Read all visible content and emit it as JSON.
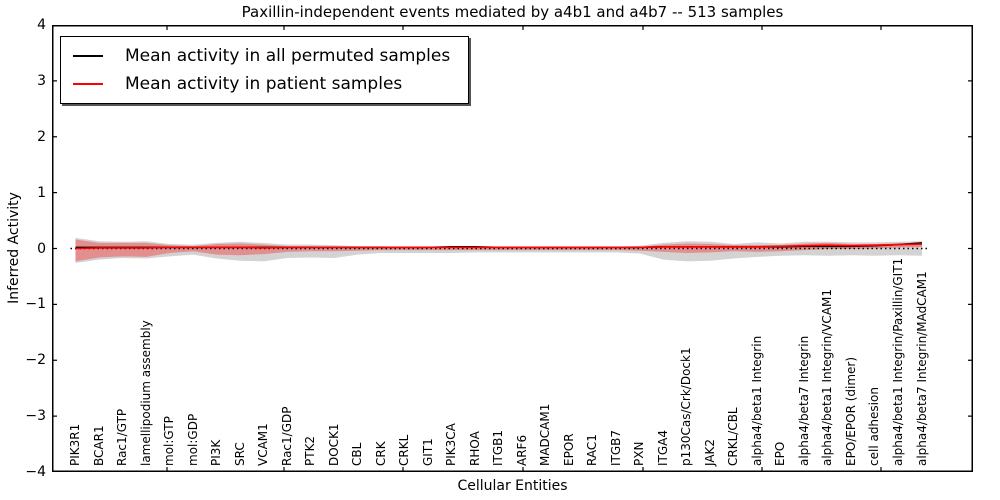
{
  "title": "Paxillin-independent events mediated by a4b1 and a4b7 -- 513 samples",
  "axes": {
    "x_label": "Cellular Entities",
    "y_label": "Inferred Activity"
  },
  "legend": {
    "items": [
      {
        "label": "Mean activity in all permuted samples",
        "color": "#000000"
      },
      {
        "label": "Mean activity in patient samples",
        "color": "#ff0000"
      }
    ]
  },
  "chart_data": {
    "type": "line",
    "title": "Paxillin-independent events mediated by a4b1 and a4b7 -- 513 samples",
    "xlabel": "Cellular Entities",
    "ylabel": "Inferred Activity",
    "ylim": [
      -4,
      4
    ],
    "yticks": [
      -4,
      -3,
      -2,
      -1,
      0,
      1,
      2,
      3,
      4
    ],
    "grid": false,
    "legend_position": "upper left",
    "sample_count": 513,
    "categories": [
      "PIK3R1",
      "BCAR1",
      "Rac1/GTP",
      "lamellipodium assembly",
      "mol:GTP",
      "mol:GDP",
      "PI3K",
      "SRC",
      "VCAM1",
      "Rac1/GDP",
      "PTK2",
      "DOCK1",
      "CBL",
      "CRK",
      "CRKL",
      "GIT1",
      "PIK3CA",
      "RHOA",
      "ITGB1",
      "ARF6",
      "MADCAM1",
      "EPOR",
      "RAC1",
      "ITGB7",
      "PXN",
      "ITGA4",
      "p130Cas/Crk/Dock1",
      "JAK2",
      "CRKL/CBL",
      "alpha4/beta1 Integrin",
      "EPO",
      "alpha4/beta7 Integrin",
      "alpha4/beta1 Integrin/VCAM1",
      "EPO/EPOR (dimer)",
      "cell adhesion",
      "alpha4/beta1 Integrin/Paxillin/GIT1",
      "alpha4/beta7 Integrin/MAdCAM1"
    ],
    "zero_line": {
      "value": 0,
      "linestyle": "dotted",
      "color": "#000000"
    },
    "series": [
      {
        "name": "Mean activity in all permuted samples",
        "color": "#000000",
        "linestyle": "solid",
        "values": [
          0.02,
          0.02,
          0.02,
          0.02,
          0.02,
          0.02,
          0.02,
          0.02,
          0.02,
          0.02,
          0.02,
          0.02,
          0.02,
          0.02,
          0.02,
          0.02,
          0.03,
          0.03,
          0.02,
          0.02,
          0.02,
          0.02,
          0.02,
          0.02,
          0.02,
          0.03,
          0.03,
          0.03,
          0.03,
          0.03,
          0.03,
          0.04,
          0.04,
          0.04,
          0.05,
          0.07,
          0.1
        ]
      },
      {
        "name": "Mean activity in patient samples",
        "color": "#ff0000",
        "linestyle": "solid",
        "values": [
          0.0,
          0.01,
          0.01,
          0.01,
          0.02,
          0.02,
          0.02,
          0.02,
          0.01,
          0.02,
          0.02,
          0.02,
          0.02,
          0.02,
          0.02,
          0.02,
          0.02,
          0.02,
          0.02,
          0.02,
          0.02,
          0.02,
          0.02,
          0.02,
          0.02,
          0.03,
          0.03,
          0.03,
          0.03,
          0.03,
          0.04,
          0.05,
          0.06,
          0.05,
          0.06,
          0.07,
          0.08
        ]
      }
    ],
    "bands": [
      {
        "name": "permuted samples activity range",
        "color": "rgba(128,128,128,0.35)",
        "upper": [
          0.19,
          0.13,
          0.12,
          0.13,
          0.08,
          0.07,
          0.1,
          0.12,
          0.1,
          0.07,
          0.07,
          0.06,
          0.04,
          0.04,
          0.03,
          0.03,
          0.03,
          0.03,
          0.03,
          0.03,
          0.03,
          0.03,
          0.03,
          0.03,
          0.05,
          0.1,
          0.13,
          0.12,
          0.08,
          0.11,
          0.09,
          0.12,
          0.12,
          0.11,
          0.11,
          0.12,
          0.13
        ],
        "lower": [
          -0.26,
          -0.2,
          -0.17,
          -0.18,
          -0.14,
          -0.11,
          -0.18,
          -0.22,
          -0.23,
          -0.17,
          -0.16,
          -0.17,
          -0.11,
          -0.08,
          -0.08,
          -0.08,
          -0.08,
          -0.07,
          -0.07,
          -0.07,
          -0.07,
          -0.07,
          -0.07,
          -0.07,
          -0.09,
          -0.2,
          -0.23,
          -0.22,
          -0.18,
          -0.15,
          -0.13,
          -0.12,
          -0.13,
          -0.12,
          -0.13,
          -0.12,
          -0.13
        ]
      },
      {
        "name": "patient samples activity range",
        "color": "rgba(255,0,0,0.32)",
        "upper": [
          0.16,
          0.1,
          0.1,
          0.1,
          0.06,
          0.04,
          0.08,
          0.09,
          0.07,
          0.04,
          0.04,
          0.03,
          0.03,
          0.02,
          0.02,
          0.02,
          0.02,
          0.02,
          0.02,
          0.02,
          0.02,
          0.02,
          0.03,
          0.03,
          0.03,
          0.07,
          0.09,
          0.08,
          0.06,
          0.06,
          0.06,
          0.09,
          0.1,
          0.08,
          0.08,
          0.09,
          0.11
        ],
        "lower": [
          -0.23,
          -0.16,
          -0.14,
          -0.15,
          -0.08,
          -0.05,
          -0.11,
          -0.12,
          -0.1,
          -0.06,
          -0.05,
          -0.05,
          -0.04,
          -0.03,
          -0.03,
          -0.03,
          -0.03,
          -0.03,
          -0.03,
          -0.03,
          -0.03,
          -0.03,
          -0.03,
          -0.03,
          -0.04,
          -0.06,
          -0.08,
          -0.07,
          -0.05,
          -0.06,
          -0.05,
          -0.03,
          -0.01,
          -0.01,
          0.0,
          0.02,
          0.03
        ]
      }
    ]
  }
}
